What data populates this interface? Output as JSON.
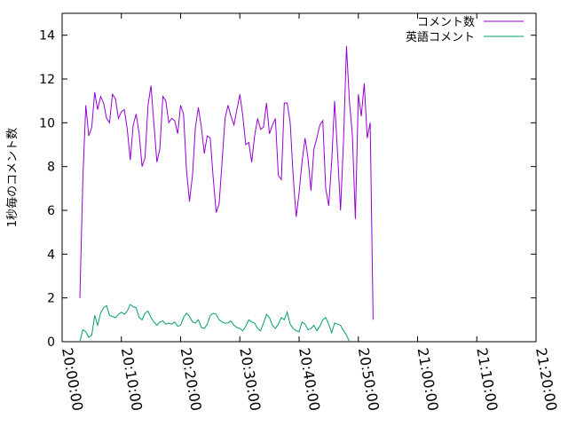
{
  "chart_data": {
    "type": "line",
    "ylabel": "1秒毎のコメント数",
    "xlabel": "",
    "title": "",
    "xlim": [
      "20:00:00",
      "21:20:00"
    ],
    "ylim": [
      0,
      15
    ],
    "x_ticks": [
      "20:00:00",
      "20:10:00",
      "20:20:00",
      "20:30:00",
      "20:40:00",
      "20:50:00",
      "21:00:00",
      "21:10:00",
      "21:20:00"
    ],
    "y_ticks": [
      0,
      2,
      4,
      6,
      8,
      10,
      12,
      14
    ],
    "legend_position": "top-right",
    "grid": false,
    "series": [
      {
        "name": "コメント数",
        "color": "#9400d3",
        "points": [
          [
            "20:03:00",
            2.0
          ],
          [
            "20:03:30",
            7.5
          ],
          [
            "20:04:00",
            10.8
          ],
          [
            "20:04:30",
            9.4
          ],
          [
            "20:05:00",
            9.8
          ],
          [
            "20:05:30",
            11.4
          ],
          [
            "20:06:00",
            10.6
          ],
          [
            "20:06:30",
            11.2
          ],
          [
            "20:07:00",
            10.9
          ],
          [
            "20:07:30",
            10.2
          ],
          [
            "20:08:00",
            10.0
          ],
          [
            "20:08:30",
            11.3
          ],
          [
            "20:09:00",
            11.1
          ],
          [
            "20:09:30",
            10.2
          ],
          [
            "20:10:00",
            10.5
          ],
          [
            "20:10:30",
            10.6
          ],
          [
            "20:11:00",
            9.7
          ],
          [
            "20:11:30",
            8.3
          ],
          [
            "20:12:00",
            9.9
          ],
          [
            "20:12:30",
            10.4
          ],
          [
            "20:13:00",
            9.5
          ],
          [
            "20:13:30",
            8.0
          ],
          [
            "20:14:00",
            8.4
          ],
          [
            "20:14:30",
            10.8
          ],
          [
            "20:15:00",
            11.7
          ],
          [
            "20:15:30",
            9.9
          ],
          [
            "20:16:00",
            8.2
          ],
          [
            "20:16:30",
            8.8
          ],
          [
            "20:17:00",
            11.2
          ],
          [
            "20:17:30",
            11.0
          ],
          [
            "20:18:00",
            10.0
          ],
          [
            "20:18:30",
            10.2
          ],
          [
            "20:19:00",
            10.1
          ],
          [
            "20:19:30",
            9.5
          ],
          [
            "20:20:00",
            10.8
          ],
          [
            "20:20:30",
            10.4
          ],
          [
            "20:21:00",
            7.8
          ],
          [
            "20:21:30",
            6.4
          ],
          [
            "20:22:00",
            7.6
          ],
          [
            "20:22:30",
            9.8
          ],
          [
            "20:23:00",
            10.7
          ],
          [
            "20:23:30",
            9.8
          ],
          [
            "20:24:00",
            8.6
          ],
          [
            "20:24:30",
            9.4
          ],
          [
            "20:25:00",
            9.3
          ],
          [
            "20:25:30",
            7.5
          ],
          [
            "20:26:00",
            5.9
          ],
          [
            "20:26:30",
            6.3
          ],
          [
            "20:27:00",
            8.2
          ],
          [
            "20:27:30",
            10.2
          ],
          [
            "20:28:00",
            10.8
          ],
          [
            "20:28:30",
            10.3
          ],
          [
            "20:29:00",
            9.9
          ],
          [
            "20:29:30",
            10.6
          ],
          [
            "20:30:00",
            11.3
          ],
          [
            "20:30:30",
            10.3
          ],
          [
            "20:31:00",
            9.0
          ],
          [
            "20:31:30",
            9.1
          ],
          [
            "20:32:00",
            8.2
          ],
          [
            "20:32:30",
            9.4
          ],
          [
            "20:33:00",
            10.2
          ],
          [
            "20:33:30",
            9.7
          ],
          [
            "20:34:00",
            9.8
          ],
          [
            "20:34:30",
            10.9
          ],
          [
            "20:35:00",
            9.5
          ],
          [
            "20:35:30",
            9.9
          ],
          [
            "20:36:00",
            10.2
          ],
          [
            "20:36:30",
            7.6
          ],
          [
            "20:37:00",
            7.4
          ],
          [
            "20:37:30",
            10.9
          ],
          [
            "20:38:00",
            10.9
          ],
          [
            "20:38:30",
            10.0
          ],
          [
            "20:39:00",
            7.6
          ],
          [
            "20:39:30",
            5.7
          ],
          [
            "20:40:00",
            6.8
          ],
          [
            "20:40:30",
            8.2
          ],
          [
            "20:41:00",
            9.3
          ],
          [
            "20:41:30",
            8.4
          ],
          [
            "20:42:00",
            6.9
          ],
          [
            "20:42:30",
            8.8
          ],
          [
            "20:43:00",
            9.3
          ],
          [
            "20:43:30",
            9.9
          ],
          [
            "20:44:00",
            10.1
          ],
          [
            "20:44:30",
            7.0
          ],
          [
            "20:45:00",
            6.2
          ],
          [
            "20:45:30",
            8.2
          ],
          [
            "20:46:00",
            11.0
          ],
          [
            "20:46:30",
            8.6
          ],
          [
            "20:47:00",
            6.0
          ],
          [
            "20:47:30",
            9.2
          ],
          [
            "20:48:00",
            13.5
          ],
          [
            "20:48:30",
            11.0
          ],
          [
            "20:49:00",
            9.4
          ],
          [
            "20:49:30",
            5.6
          ],
          [
            "20:50:00",
            11.3
          ],
          [
            "20:50:30",
            10.3
          ],
          [
            "20:51:00",
            11.8
          ],
          [
            "20:51:30",
            9.3
          ],
          [
            "20:52:00",
            10.0
          ],
          [
            "20:52:30",
            1.0
          ]
        ]
      },
      {
        "name": "英語コメント",
        "color": "#009e73",
        "points": [
          [
            "20:03:00",
            0.0
          ],
          [
            "20:03:30",
            0.55
          ],
          [
            "20:04:00",
            0.45
          ],
          [
            "20:04:30",
            0.2
          ],
          [
            "20:05:00",
            0.3
          ],
          [
            "20:05:30",
            1.2
          ],
          [
            "20:06:00",
            0.75
          ],
          [
            "20:06:30",
            1.3
          ],
          [
            "20:07:00",
            1.55
          ],
          [
            "20:07:30",
            1.65
          ],
          [
            "20:08:00",
            1.2
          ],
          [
            "20:08:30",
            1.15
          ],
          [
            "20:09:00",
            1.1
          ],
          [
            "20:09:30",
            1.25
          ],
          [
            "20:10:00",
            1.35
          ],
          [
            "20:10:30",
            1.25
          ],
          [
            "20:11:00",
            1.4
          ],
          [
            "20:11:30",
            1.7
          ],
          [
            "20:12:00",
            1.6
          ],
          [
            "20:12:30",
            1.55
          ],
          [
            "20:13:00",
            1.1
          ],
          [
            "20:13:30",
            1.0
          ],
          [
            "20:14:00",
            1.3
          ],
          [
            "20:14:30",
            1.4
          ],
          [
            "20:15:00",
            1.1
          ],
          [
            "20:15:30",
            0.9
          ],
          [
            "20:16:00",
            0.75
          ],
          [
            "20:16:30",
            0.9
          ],
          [
            "20:17:00",
            0.95
          ],
          [
            "20:17:30",
            0.8
          ],
          [
            "20:18:00",
            0.85
          ],
          [
            "20:18:30",
            0.8
          ],
          [
            "20:19:00",
            0.9
          ],
          [
            "20:19:30",
            0.7
          ],
          [
            "20:20:00",
            0.75
          ],
          [
            "20:20:30",
            1.1
          ],
          [
            "20:21:00",
            1.3
          ],
          [
            "20:21:30",
            1.15
          ],
          [
            "20:22:00",
            0.9
          ],
          [
            "20:22:30",
            0.85
          ],
          [
            "20:23:00",
            1.0
          ],
          [
            "20:23:30",
            0.65
          ],
          [
            "20:24:00",
            0.6
          ],
          [
            "20:24:30",
            0.8
          ],
          [
            "20:25:00",
            1.2
          ],
          [
            "20:25:30",
            1.3
          ],
          [
            "20:26:00",
            1.25
          ],
          [
            "20:26:30",
            1.0
          ],
          [
            "20:27:00",
            0.9
          ],
          [
            "20:27:30",
            0.85
          ],
          [
            "20:28:00",
            0.85
          ],
          [
            "20:28:30",
            0.95
          ],
          [
            "20:29:00",
            0.75
          ],
          [
            "20:29:30",
            0.65
          ],
          [
            "20:30:00",
            0.6
          ],
          [
            "20:30:30",
            0.5
          ],
          [
            "20:31:00",
            0.7
          ],
          [
            "20:31:30",
            1.0
          ],
          [
            "20:32:00",
            0.9
          ],
          [
            "20:32:30",
            0.85
          ],
          [
            "20:33:00",
            0.6
          ],
          [
            "20:33:30",
            0.5
          ],
          [
            "20:34:00",
            0.85
          ],
          [
            "20:34:30",
            1.25
          ],
          [
            "20:35:00",
            1.1
          ],
          [
            "20:35:30",
            0.75
          ],
          [
            "20:36:00",
            0.6
          ],
          [
            "20:36:30",
            0.8
          ],
          [
            "20:37:00",
            1.1
          ],
          [
            "20:37:30",
            1.0
          ],
          [
            "20:38:00",
            1.35
          ],
          [
            "20:38:30",
            0.8
          ],
          [
            "20:39:00",
            0.6
          ],
          [
            "20:39:30",
            0.5
          ],
          [
            "20:40:00",
            0.45
          ],
          [
            "20:40:30",
            0.9
          ],
          [
            "20:41:00",
            0.8
          ],
          [
            "20:41:30",
            0.55
          ],
          [
            "20:42:00",
            0.6
          ],
          [
            "20:42:30",
            0.75
          ],
          [
            "20:43:00",
            0.5
          ],
          [
            "20:43:30",
            0.7
          ],
          [
            "20:44:00",
            1.0
          ],
          [
            "20:44:30",
            1.1
          ],
          [
            "20:45:00",
            0.8
          ],
          [
            "20:45:30",
            0.4
          ],
          [
            "20:46:00",
            0.85
          ],
          [
            "20:46:30",
            0.8
          ],
          [
            "20:47:00",
            0.75
          ],
          [
            "20:47:30",
            0.5
          ],
          [
            "20:48:00",
            0.3
          ],
          [
            "20:48:30",
            0.0
          ]
        ]
      }
    ]
  }
}
